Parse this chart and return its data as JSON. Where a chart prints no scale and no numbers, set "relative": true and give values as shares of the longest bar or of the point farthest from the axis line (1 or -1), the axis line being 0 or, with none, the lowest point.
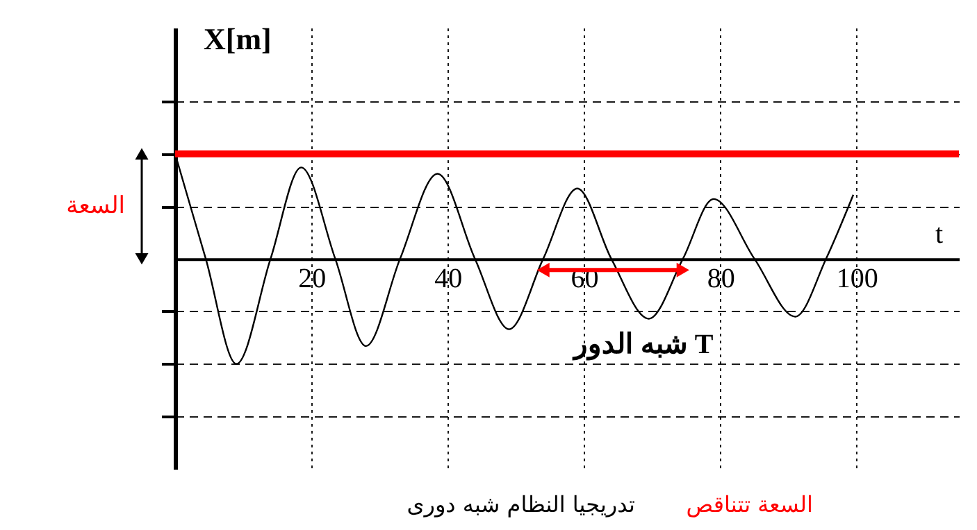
{
  "chart_data": {
    "type": "line",
    "relative": true,
    "xlabel": "t",
    "ylabel": "X[m]",
    "x": [
      0,
      4.5,
      9,
      14,
      18.5,
      23.5,
      28,
      33,
      38.5,
      44,
      49,
      54,
      59,
      64,
      69.5,
      74.5,
      79,
      85,
      91,
      95.5,
      99.5
    ],
    "series": [
      {
        "color": "#000000",
        "values": [
          1,
          0,
          -1,
          0,
          0.87,
          0,
          -0.83,
          0,
          0.81,
          0,
          -0.67,
          0,
          0.67,
          0,
          -0.57,
          0,
          0.57,
          0,
          -0.55,
          0,
          0.61
        ]
      }
    ],
    "xlim": [
      0,
      115
    ],
    "xticks": [
      20,
      40,
      60,
      80,
      100
    ],
    "grid": true,
    "ref_lines": [
      {
        "axis": "y",
        "value": 1,
        "color": "#ff0000"
      }
    ],
    "annotations": [
      "السعة",
      "شبه الدور T",
      "السعة تتناقص",
      "تدريجيا النظام شبه دورى"
    ]
  }
}
